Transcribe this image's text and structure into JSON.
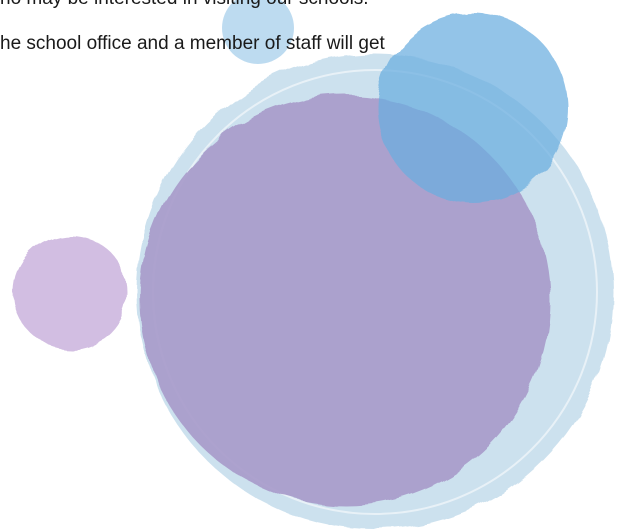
{
  "document": {
    "lines": [
      "ho may be interested in visiting our schools.",
      "he school office and a member of staff will get"
    ]
  },
  "decoration": {
    "colors": {
      "large_circle": "#c4dcec",
      "purple_circle": "#a99ccb",
      "blue_circle": "#6aaee0",
      "small_top_circle": "#b6d7ee",
      "small_left_circle": "#c8aedb"
    }
  }
}
